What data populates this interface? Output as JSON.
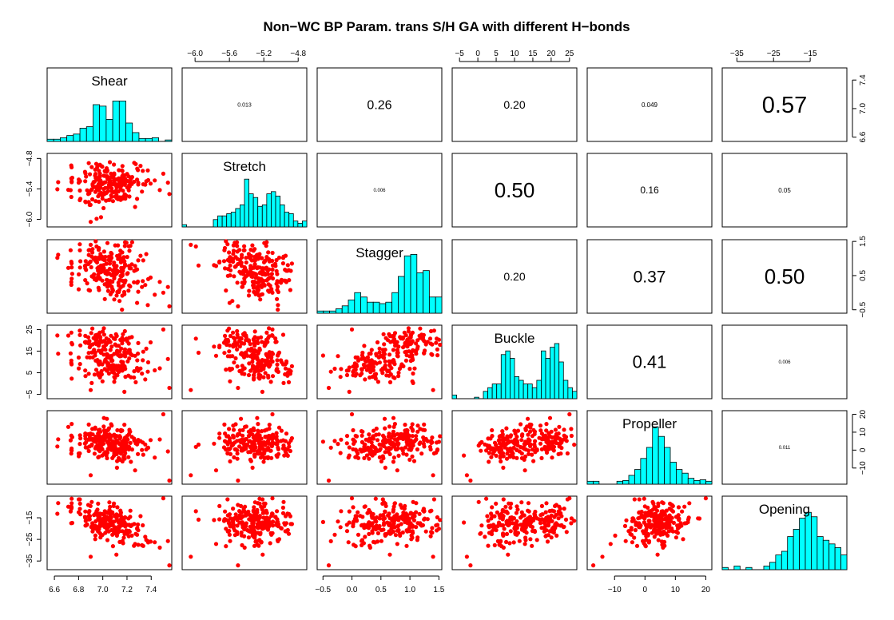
{
  "chart_data": {
    "type": "scatter-matrix",
    "title": "Non−WC BP Param. trans S/H GA with different H−bonds",
    "variables": [
      "Shear",
      "Stretch",
      "Stagger",
      "Buckle",
      "Propeller",
      "Opening"
    ],
    "ranges": {
      "Shear": [
        6.54,
        7.57
      ],
      "Stretch": [
        -6.15,
        -4.7
      ],
      "Stagger": [
        -0.6,
        1.55
      ],
      "Buckle": [
        -7,
        27
      ],
      "Propeller": [
        -19,
        22
      ],
      "Opening": [
        -39,
        -5
      ]
    },
    "ticks": {
      "Shear": [
        "6.6",
        "6.8",
        "7.0",
        "7.2",
        "7.4"
      ],
      "Stretch": [
        "−6.0",
        "−5.6",
        "−5.2",
        "−4.8"
      ],
      "Stretch_left": [
        "−4.8",
        "−5.4",
        "−6.0"
      ],
      "Stagger": [
        "−0.5",
        "0.0",
        "0.5",
        "1.0",
        "1.5"
      ],
      "Stagger_right": [
        "−0.5",
        "0.5",
        "1.5"
      ],
      "Buckle": [
        "−5",
        "0",
        "5",
        "10",
        "15",
        "20",
        "25"
      ],
      "Buckle_left": [
        "−5",
        "5",
        "15",
        "25"
      ],
      "Propeller": [
        "−10",
        "0",
        "10",
        "20"
      ],
      "Opening": [
        "−35",
        "−25",
        "−15"
      ],
      "Opening_left": [
        "−15",
        "−25",
        "−35"
      ],
      "Shear_right": [
        "6.6",
        "7.0",
        "7.4"
      ]
    },
    "correlations": [
      {
        "row": 0,
        "col": 1,
        "label": "0.013"
      },
      {
        "row": 0,
        "col": 2,
        "label": "0.26"
      },
      {
        "row": 0,
        "col": 3,
        "label": "0.20"
      },
      {
        "row": 0,
        "col": 4,
        "label": "0.049"
      },
      {
        "row": 0,
        "col": 5,
        "label": "0.57"
      },
      {
        "row": 1,
        "col": 2,
        "label": "0.006"
      },
      {
        "row": 1,
        "col": 3,
        "label": "0.50"
      },
      {
        "row": 1,
        "col": 4,
        "label": "0.16"
      },
      {
        "row": 1,
        "col": 5,
        "label": "0.05"
      },
      {
        "row": 2,
        "col": 3,
        "label": "0.20"
      },
      {
        "row": 2,
        "col": 4,
        "label": "0.37"
      },
      {
        "row": 2,
        "col": 5,
        "label": "0.50"
      },
      {
        "row": 3,
        "col": 4,
        "label": "0.41"
      },
      {
        "row": 3,
        "col": 5,
        "label": "0.006"
      },
      {
        "row": 4,
        "col": 5,
        "label": "0.011"
      }
    ],
    "histograms": {
      "Shear": [
        0.03,
        0.03,
        0.05,
        0.08,
        0.1,
        0.18,
        0.2,
        0.5,
        0.48,
        0.3,
        0.55,
        0.55,
        0.25,
        0.12,
        0.04,
        0.04,
        0.05,
        0.0,
        0.02
      ],
      "Stretch": [
        0.03,
        0,
        0,
        0,
        0,
        0,
        0,
        0.1,
        0.15,
        0.15,
        0.18,
        0.2,
        0.25,
        0.3,
        0.65,
        0.45,
        0.4,
        0.28,
        0.3,
        0.45,
        0.48,
        0.42,
        0.3,
        0.2,
        0.18,
        0.08,
        0.05,
        0.08
      ],
      "Stagger": [
        0.03,
        0.03,
        0.03,
        0.06,
        0.1,
        0.18,
        0.28,
        0.22,
        0.15,
        0.15,
        0.13,
        0.15,
        0.28,
        0.5,
        0.78,
        0.8,
        0.55,
        0.58,
        0.22,
        0.22
      ],
      "Buckle": [
        0.05,
        0,
        0,
        0,
        0,
        0.02,
        0,
        0.1,
        0.15,
        0.2,
        0.2,
        0.6,
        0.65,
        0.55,
        0.3,
        0.25,
        0.2,
        0.2,
        0.15,
        0.25,
        0.65,
        0.55,
        0.7,
        0.75,
        0.5,
        0.25,
        0.15,
        0.1
      ],
      "Propeller": [
        0.04,
        0.04,
        0,
        0,
        0,
        0.04,
        0.05,
        0.12,
        0.2,
        0.35,
        0.5,
        0.78,
        0.65,
        0.5,
        0.3,
        0.2,
        0.15,
        0.08,
        0.05,
        0.06,
        0.04
      ],
      "Opening": [
        0.03,
        0,
        0.05,
        0,
        0.03,
        0,
        0,
        0.05,
        0.1,
        0.2,
        0.25,
        0.45,
        0.55,
        0.7,
        0.78,
        0.72,
        0.45,
        0.4,
        0.35,
        0.3,
        0.2
      ]
    }
  }
}
